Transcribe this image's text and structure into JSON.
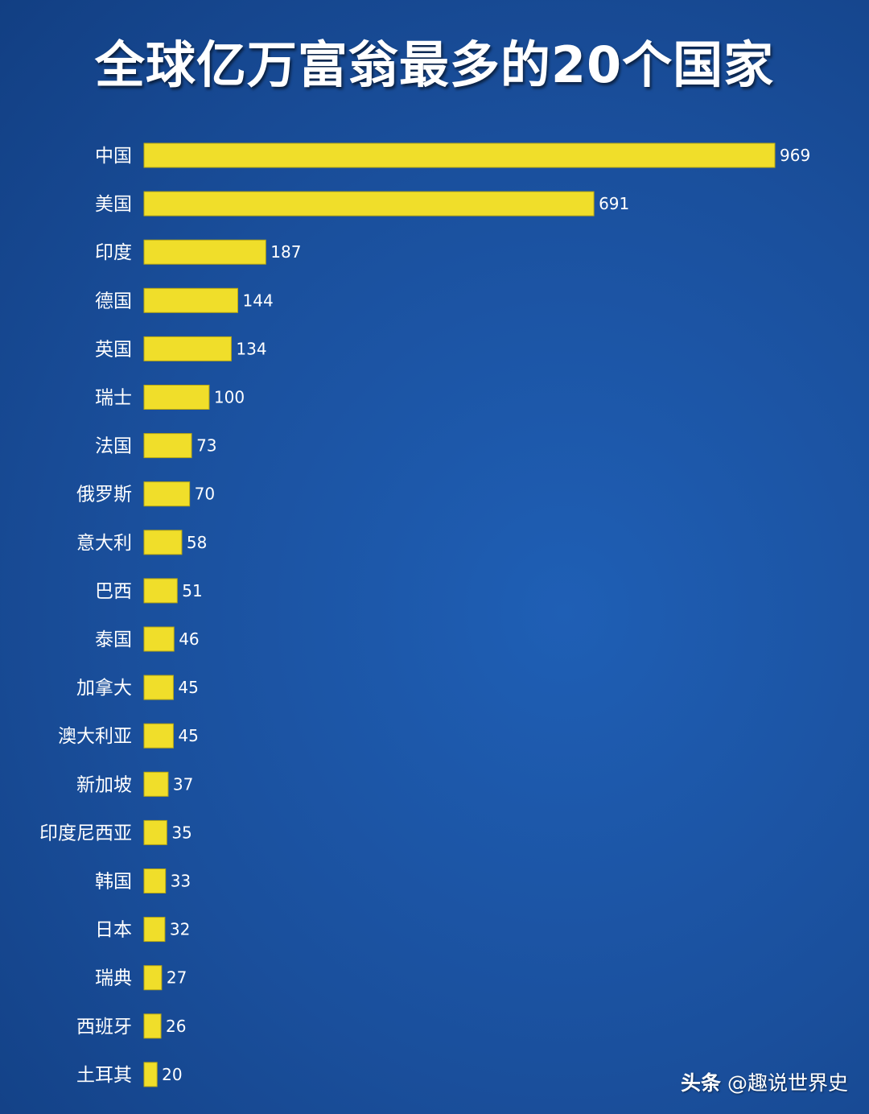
{
  "chart_data": {
    "type": "bar",
    "orientation": "horizontal",
    "title": "全球亿万富翁最多的20个国家",
    "categories": [
      "中国",
      "美国",
      "印度",
      "德国",
      "英国",
      "瑞士",
      "法国",
      "俄罗斯",
      "意大利",
      "巴西",
      "泰国",
      "加拿大",
      "澳大利亚",
      "新加坡",
      "印度尼西亚",
      "韩国",
      "日本",
      "瑞典",
      "西班牙",
      "土耳其"
    ],
    "values": [
      969,
      691,
      187,
      144,
      134,
      100,
      73,
      70,
      58,
      51,
      46,
      45,
      45,
      37,
      35,
      33,
      32,
      27,
      26,
      20
    ],
    "xlim": [
      0,
      969
    ],
    "grid": false,
    "legend": "none",
    "bar_color": "#f0de2a",
    "background_color": "#1a4f9c"
  },
  "watermark": {
    "brand": "头条",
    "handle": "@趣说世界史"
  }
}
